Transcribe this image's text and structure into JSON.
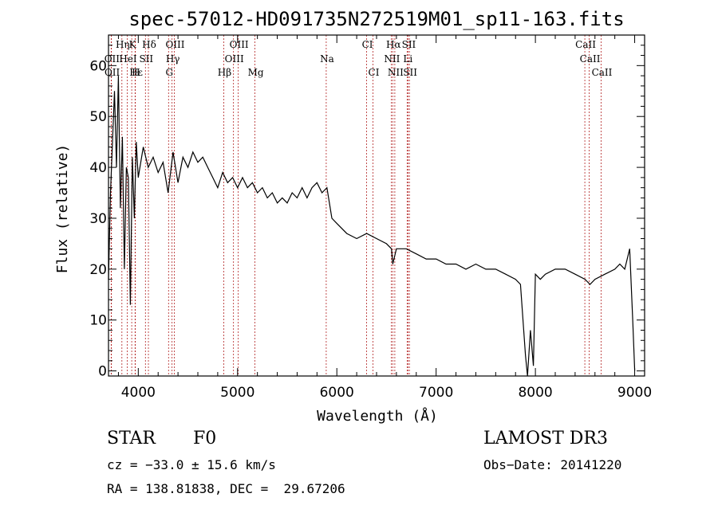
{
  "chart_data": {
    "type": "line",
    "title": "spec-57012-HD091735N272519M01_sp11-163.fits",
    "xlabel": "Wavelength (Å)",
    "ylabel": "Flux (relative)",
    "xlim": [
      3700,
      9100
    ],
    "ylim": [
      -1,
      66
    ],
    "x_ticks": [
      4000,
      5000,
      6000,
      7000,
      8000,
      9000
    ],
    "y_ticks": [
      0,
      10,
      20,
      30,
      40,
      50,
      60
    ],
    "line_color": "#000000",
    "marker_color": "#b22222",
    "series": [
      {
        "name": "spectrum",
        "x": [
          3700,
          3720,
          3740,
          3760,
          3780,
          3800,
          3820,
          3840,
          3860,
          3880,
          3900,
          3920,
          3940,
          3960,
          3980,
          4000,
          4050,
          4100,
          4150,
          4200,
          4250,
          4300,
          4350,
          4400,
          4450,
          4500,
          4550,
          4600,
          4650,
          4700,
          4750,
          4800,
          4850,
          4900,
          4950,
          5000,
          5050,
          5100,
          5150,
          5200,
          5250,
          5300,
          5350,
          5400,
          5450,
          5500,
          5550,
          5600,
          5650,
          5700,
          5750,
          5800,
          5850,
          5900,
          5950,
          6000,
          6100,
          6200,
          6300,
          6400,
          6500,
          6550,
          6563,
          6600,
          6700,
          6800,
          6900,
          7000,
          7100,
          7200,
          7300,
          7400,
          7500,
          7600,
          7700,
          7800,
          7850,
          7900,
          7920,
          7950,
          7980,
          8000,
          8050,
          8100,
          8200,
          8300,
          8400,
          8500,
          8550,
          8600,
          8700,
          8800,
          8850,
          8900,
          8950,
          8980,
          9000
        ],
        "y": [
          18,
          35,
          45,
          55,
          40,
          58,
          32,
          46,
          20,
          40,
          38,
          13,
          42,
          30,
          45,
          38,
          44,
          40,
          42,
          39,
          41,
          35,
          43,
          37,
          42,
          40,
          43,
          41,
          42,
          40,
          38,
          36,
          39,
          37,
          38,
          36,
          38,
          36,
          37,
          35,
          36,
          34,
          35,
          33,
          34,
          33,
          35,
          34,
          36,
          34,
          36,
          37,
          35,
          36,
          30,
          29,
          27,
          26,
          27,
          26,
          25,
          24,
          21,
          24,
          24,
          23,
          22,
          22,
          21,
          21,
          20,
          21,
          20,
          20,
          19,
          18,
          17,
          3,
          -1,
          8,
          1,
          19,
          18,
          19,
          20,
          20,
          19,
          18,
          17,
          18,
          19,
          20,
          21,
          20,
          24,
          10,
          0
        ]
      }
    ],
    "spectral_lines": [
      {
        "label": "Hη",
        "x": 3835,
        "row": 0
      },
      {
        "label": "K",
        "x": 3934,
        "row": 0
      },
      {
        "label": "Hδ",
        "x": 4102,
        "row": 0
      },
      {
        "label": "OIII",
        "x": 4363,
        "row": 0
      },
      {
        "label": "OIII",
        "x": 5007,
        "row": 0
      },
      {
        "label": "CI",
        "x": 6300,
        "row": 0
      },
      {
        "label": "Hα",
        "x": 6563,
        "row": 0
      },
      {
        "label": "SII",
        "x": 6717,
        "row": 0
      },
      {
        "label": "CaII",
        "x": 8498,
        "row": 0
      },
      {
        "label": "OII",
        "x": 3727,
        "row": 1
      },
      {
        "label": "HeI",
        "x": 3889,
        "row": 1
      },
      {
        "label": "SII",
        "x": 4072,
        "row": 1
      },
      {
        "label": "Hγ",
        "x": 4340,
        "row": 1
      },
      {
        "label": "OIII",
        "x": 4959,
        "row": 1
      },
      {
        "label": "Na",
        "x": 5893,
        "row": 1
      },
      {
        "label": "NII",
        "x": 6548,
        "row": 1
      },
      {
        "label": "Li",
        "x": 6708,
        "row": 1
      },
      {
        "label": "CaII",
        "x": 8542,
        "row": 1
      },
      {
        "label": "OII",
        "x": 3729,
        "row": 2
      },
      {
        "label": "Hε",
        "x": 3970,
        "row": 2
      },
      {
        "label": "H",
        "x": 3968,
        "row": 2
      },
      {
        "label": "G",
        "x": 4305,
        "row": 2
      },
      {
        "label": "Hβ",
        "x": 4861,
        "row": 2
      },
      {
        "label": "Mg",
        "x": 5175,
        "row": 2
      },
      {
        "label": "CI",
        "x": 6364,
        "row": 2
      },
      {
        "label": "NII",
        "x": 6584,
        "row": 2
      },
      {
        "label": "SII",
        "x": 6731,
        "row": 2
      },
      {
        "label": "CaII",
        "x": 8662,
        "row": 2
      }
    ]
  },
  "info": {
    "class": "STAR",
    "subclass": "F0",
    "survey": "LAMOST DR3",
    "cz": "cz = −33.0 ± 15.6 km/s",
    "obs_date": "Obs−Date: 20141220",
    "coords": "RA = 138.81838, DEC =  29.67206"
  }
}
